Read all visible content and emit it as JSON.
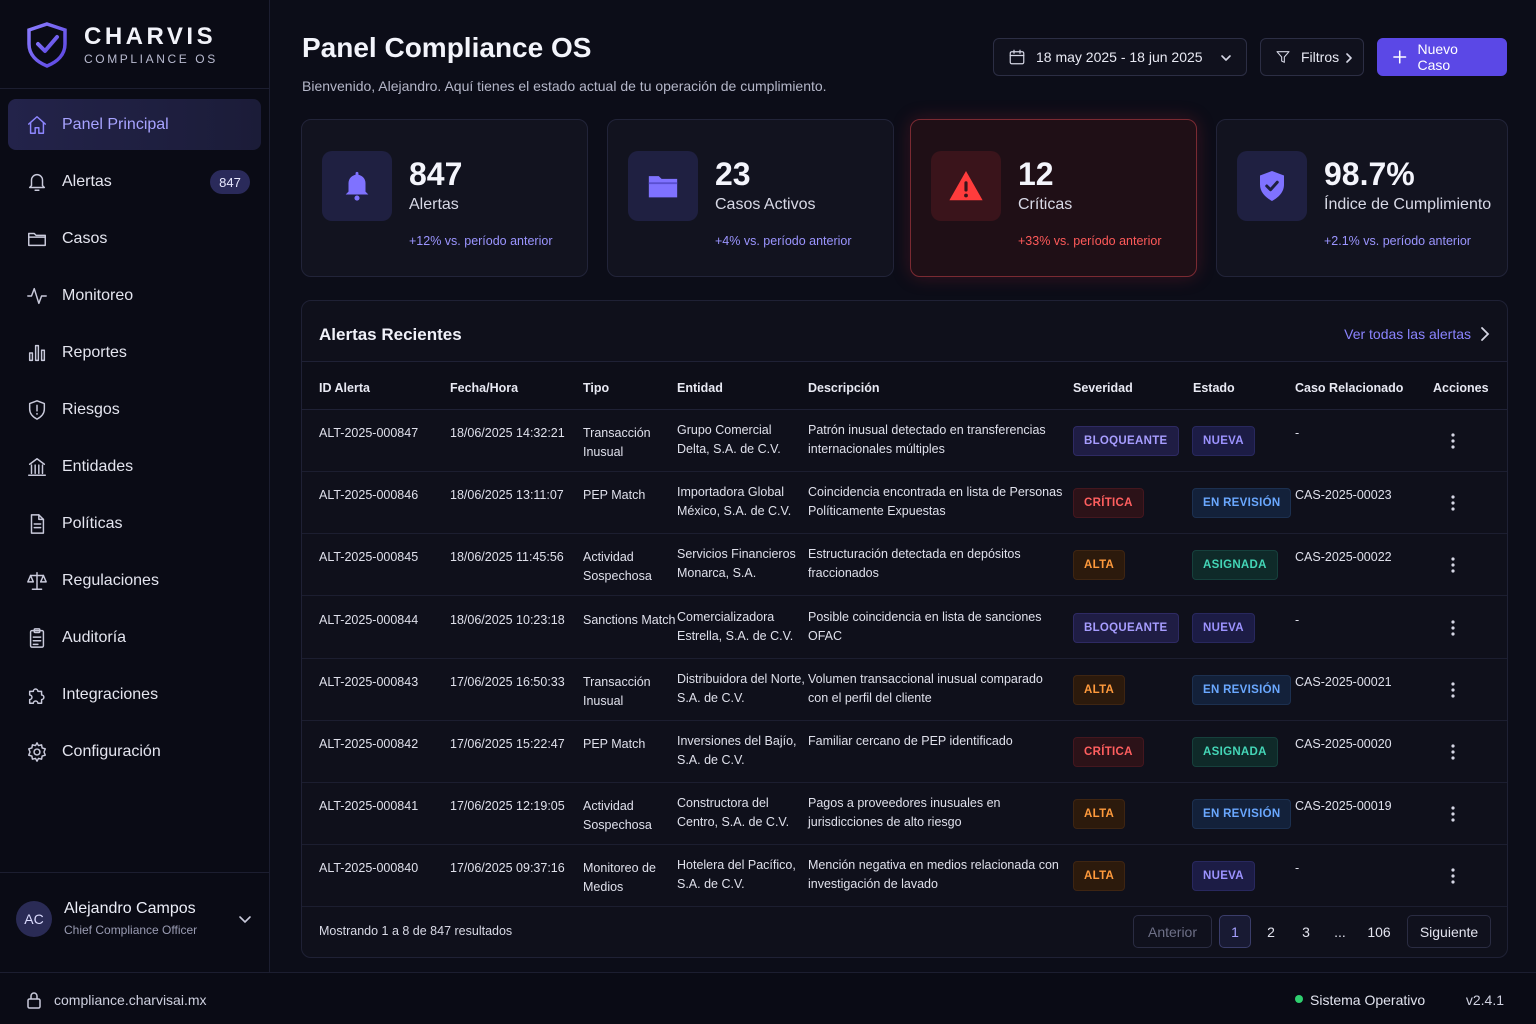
{
  "brand": {
    "name": "CHARVIS",
    "sub": "COMPLIANCE OS"
  },
  "sidebar": {
    "items": [
      {
        "label": "Panel Principal",
        "icon": "home-icon",
        "active": true
      },
      {
        "label": "Alertas",
        "icon": "bell-icon",
        "badge": "847"
      },
      {
        "label": "Casos",
        "icon": "folder-icon"
      },
      {
        "label": "Monitoreo",
        "icon": "activity-icon"
      },
      {
        "label": "Reportes",
        "icon": "bar-chart-icon"
      },
      {
        "label": "Riesgos",
        "icon": "shield-icon"
      },
      {
        "label": "Entidades",
        "icon": "building-icon"
      },
      {
        "label": "Políticas",
        "icon": "document-icon"
      },
      {
        "label": "Regulaciones",
        "icon": "scale-icon"
      },
      {
        "label": "Auditoría",
        "icon": "clipboard-icon"
      },
      {
        "label": "Integraciones",
        "icon": "puzzle-icon"
      },
      {
        "label": "Configuración",
        "icon": "gear-icon"
      }
    ]
  },
  "user": {
    "initials": "AC",
    "name": "Alejandro Campos",
    "role": "Chief Compliance Officer"
  },
  "header": {
    "title": "Panel Compliance OS",
    "subtitle": "Bienvenido, Alejandro. Aquí tienes el estado actual de tu operación de cumplimiento.",
    "date_range": "18 may 2025 - 18 jun 2025",
    "filters_label": "Filtros",
    "new_case_label": "Nuevo Caso"
  },
  "stats": [
    {
      "value": "847",
      "label": "Alertas",
      "delta": "+12% vs. período anterior",
      "icon": "bell-icon"
    },
    {
      "value": "23",
      "label": "Casos Activos",
      "delta": "+4% vs. período anterior",
      "icon": "folder-icon"
    },
    {
      "value": "12",
      "label": "Críticas",
      "delta": "+33% vs. período anterior",
      "icon": "warning-icon"
    },
    {
      "value": "98.7%",
      "label": "Índice de Cumplimiento",
      "delta": "+2.1% vs. período anterior",
      "icon": "shield-check-icon"
    }
  ],
  "alerts": {
    "title": "Alertas Recientes",
    "view_all": "Ver todas las alertas",
    "columns": [
      "ID Alerta",
      "Fecha/Hora",
      "Tipo",
      "Entidad",
      "Descripción",
      "Severidad",
      "Estado",
      "Caso Relacionado",
      "Acciones"
    ],
    "rows": [
      {
        "id": "ALT-2025-000847",
        "date": "18/06/2025 14:32:21",
        "type": "Transacción Inusual",
        "entity": "Grupo Comercial Delta, S.A. de C.V.",
        "desc": "Patrón inusual detectado en transferencias internacionales múltiples",
        "severity": "BLOQUEANTE",
        "sev_class": "bloqueante",
        "status": "NUEVA",
        "st_class": "nueva",
        "case": "-"
      },
      {
        "id": "ALT-2025-000846",
        "date": "18/06/2025 13:11:07",
        "type": "PEP Match",
        "entity": "Importadora Global México, S.A. de C.V.",
        "desc": "Coincidencia encontrada en lista de Personas Políticamente Expuestas",
        "severity": "CRÍTICA",
        "sev_class": "critica",
        "status": "EN REVISIÓN",
        "st_class": "revision",
        "case": "CAS-2025-00023"
      },
      {
        "id": "ALT-2025-000845",
        "date": "18/06/2025 11:45:56",
        "type": "Actividad Sospechosa",
        "entity": "Servicios Financieros Monarca, S.A.",
        "desc": "Estructuración detectada en depósitos fraccionados",
        "severity": "ALTA",
        "sev_class": "alta",
        "status": "ASIGNADA",
        "st_class": "asignada",
        "case": "CAS-2025-00022"
      },
      {
        "id": "ALT-2025-000844",
        "date": "18/06/2025 10:23:18",
        "type": "Sanctions Match",
        "entity": "Comercializadora Estrella, S.A. de C.V.",
        "desc": "Posible coincidencia en lista de sanciones OFAC",
        "severity": "BLOQUEANTE",
        "sev_class": "bloqueante",
        "status": "NUEVA",
        "st_class": "nueva",
        "case": "-"
      },
      {
        "id": "ALT-2025-000843",
        "date": "17/06/2025 16:50:33",
        "type": "Transacción Inusual",
        "entity": "Distribuidora del Norte, S.A. de C.V.",
        "desc": "Volumen transaccional inusual comparado con el perfil del cliente",
        "severity": "ALTA",
        "sev_class": "alta",
        "status": "EN REVISIÓN",
        "st_class": "revision",
        "case": "CAS-2025-00021"
      },
      {
        "id": "ALT-2025-000842",
        "date": "17/06/2025 15:22:47",
        "type": "PEP Match",
        "entity": "Inversiones del Bajío, S.A. de C.V.",
        "desc": "Familiar cercano de PEP identificado",
        "severity": "CRÍTICA",
        "sev_class": "critica",
        "status": "ASIGNADA",
        "st_class": "asignada",
        "case": "CAS-2025-00020"
      },
      {
        "id": "ALT-2025-000841",
        "date": "17/06/2025 12:19:05",
        "type": "Actividad Sospechosa",
        "entity": "Constructora del Centro, S.A. de C.V.",
        "desc": "Pagos a proveedores inusuales en jurisdicciones de alto riesgo",
        "severity": "ALTA",
        "sev_class": "alta",
        "status": "EN REVISIÓN",
        "st_class": "revision",
        "case": "CAS-2025-00019"
      },
      {
        "id": "ALT-2025-000840",
        "date": "17/06/2025 09:37:16",
        "type": "Monitoreo de Medios",
        "entity": "Hotelera del Pacífico, S.A. de C.V.",
        "desc": "Mención negativa en medios relacionada con investigación de lavado",
        "severity": "ALTA",
        "sev_class": "alta",
        "status": "NUEVA",
        "st_class": "nueva",
        "case": "-"
      }
    ],
    "footer": "Mostrando 1 a 8 de 847 resultados",
    "pagination": {
      "prev": "Anterior",
      "pages": [
        "1",
        "2",
        "3",
        "...",
        "106"
      ],
      "next": "Siguiente"
    }
  },
  "footer": {
    "domain": "compliance.charvisai.mx",
    "status": "Sistema Operativo",
    "version": "v2.4.1"
  },
  "colors": {
    "accent": "#5b48e6",
    "critical": "#ff5a5a",
    "ok": "#2fcf6f"
  }
}
